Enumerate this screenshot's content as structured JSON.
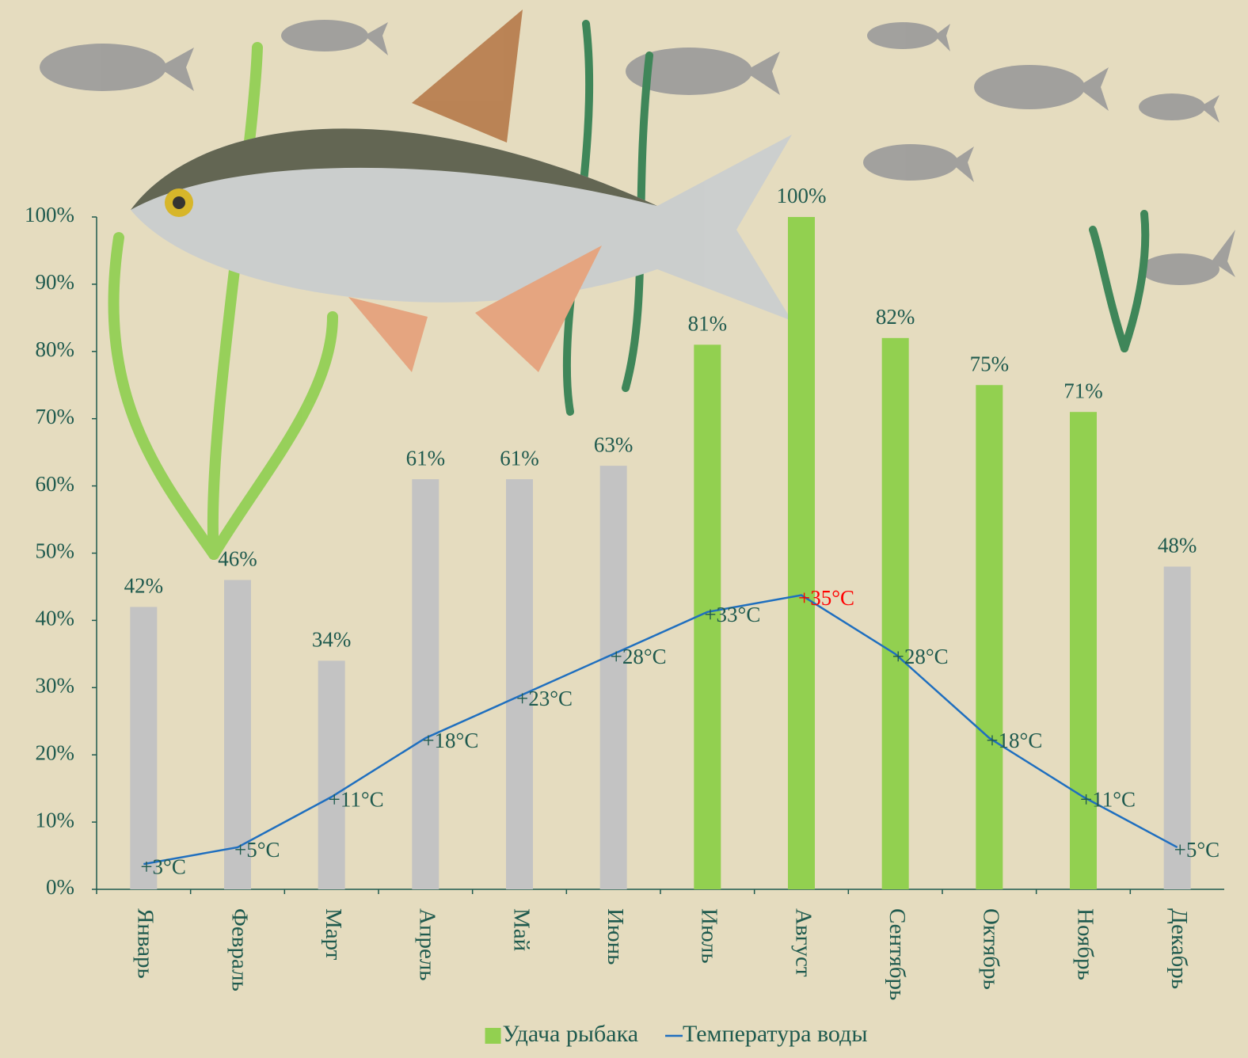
{
  "chart_data": {
    "type": "bar",
    "categories": [
      "Январь",
      "Февраль",
      "Март",
      "Апрель",
      "Май",
      "Июнь",
      "Июль",
      "Август",
      "Сентябрь",
      "Октябрь",
      "Ноябрь",
      "Декабрь"
    ],
    "series": [
      {
        "name": "Удача рыбака",
        "type": "bar",
        "color": "#92d050",
        "colors": [
          "#c3c3c3",
          "#c3c3c3",
          "#c3c3c3",
          "#c3c3c3",
          "#c3c3c3",
          "#c3c3c3",
          "#92d050",
          "#92d050",
          "#92d050",
          "#92d050",
          "#92d050",
          "#c3c3c3"
        ],
        "values": [
          42,
          46,
          34,
          61,
          61,
          63,
          81,
          100,
          82,
          75,
          71,
          48
        ],
        "value_labels": [
          "42%",
          "46%",
          "34%",
          "61%",
          "61%",
          "63%",
          "81%",
          "100%",
          "82%",
          "75%",
          "71%",
          "48%"
        ]
      },
      {
        "name": "Температура воды",
        "type": "line",
        "axis": "y2",
        "color": "#1f6fbf",
        "values": [
          3,
          5,
          11,
          18,
          23,
          28,
          33,
          35,
          28,
          18,
          11,
          5
        ],
        "value_labels": [
          "+3°C",
          "+5°C",
          "+11°C",
          "+18°C",
          "+23°C",
          "+28°C",
          "+33°C",
          "+35°C",
          "+28°C",
          "+18°C",
          "+11°C",
          "+5°C"
        ],
        "label_colors": [
          "#1f5a4e",
          "#1f5a4e",
          "#1f5a4e",
          "#1f5a4e",
          "#1f5a4e",
          "#1f5a4e",
          "#1f5a4e",
          "#ff0000",
          "#1f5a4e",
          "#1f5a4e",
          "#1f5a4e",
          "#1f5a4e"
        ]
      }
    ],
    "ylim": [
      0,
      100
    ],
    "yticks": [
      {
        "value": 0,
        "label": "0%"
      },
      {
        "value": 10,
        "label": "10%"
      },
      {
        "value": 20,
        "label": "20%"
      },
      {
        "value": 30,
        "label": "30%"
      },
      {
        "value": 40,
        "label": "40%"
      },
      {
        "value": 50,
        "label": "50%"
      },
      {
        "value": 60,
        "label": "60%"
      },
      {
        "value": 70,
        "label": "70%"
      },
      {
        "value": 80,
        "label": "80%"
      },
      {
        "value": 90,
        "label": "90%"
      },
      {
        "value": 100,
        "label": "100%"
      }
    ],
    "y2lim": [
      0,
      80
    ],
    "legend": "bottom"
  }
}
